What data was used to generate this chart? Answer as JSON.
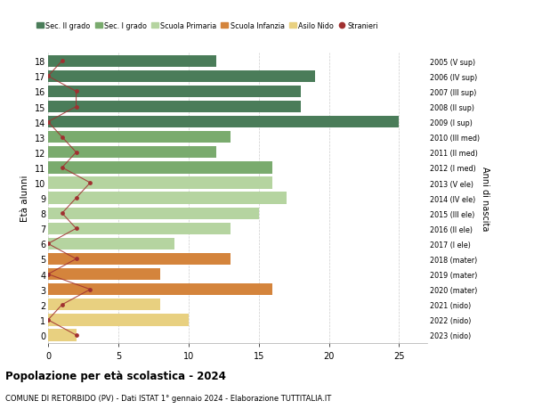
{
  "ages": [
    18,
    17,
    16,
    15,
    14,
    13,
    12,
    11,
    10,
    9,
    8,
    7,
    6,
    5,
    4,
    3,
    2,
    1,
    0
  ],
  "years": [
    "2005 (V sup)",
    "2006 (IV sup)",
    "2007 (III sup)",
    "2008 (II sup)",
    "2009 (I sup)",
    "2010 (III med)",
    "2011 (II med)",
    "2012 (I med)",
    "2013 (V ele)",
    "2014 (IV ele)",
    "2015 (III ele)",
    "2016 (II ele)",
    "2017 (I ele)",
    "2018 (mater)",
    "2019 (mater)",
    "2020 (mater)",
    "2021 (nido)",
    "2022 (nido)",
    "2023 (nido)"
  ],
  "bar_values": [
    12,
    19,
    18,
    18,
    25,
    13,
    12,
    16,
    16,
    17,
    15,
    13,
    9,
    13,
    8,
    16,
    8,
    10,
    2
  ],
  "bar_colors": [
    "#4a7c59",
    "#4a7c59",
    "#4a7c59",
    "#4a7c59",
    "#4a7c59",
    "#7aab6e",
    "#7aab6e",
    "#7aab6e",
    "#b5d4a0",
    "#b5d4a0",
    "#b5d4a0",
    "#b5d4a0",
    "#b5d4a0",
    "#d4843c",
    "#d4843c",
    "#d4843c",
    "#e8d080",
    "#e8d080",
    "#e8d080"
  ],
  "stranieri_values": [
    1,
    0,
    2,
    2,
    0,
    1,
    2,
    1,
    3,
    2,
    1,
    2,
    0,
    2,
    0,
    3,
    1,
    0,
    2
  ],
  "stranieri_color": "#a03030",
  "title_bold": "Popolazione per età scolastica - 2024",
  "subtitle": "COMUNE DI RETORBIDO (PV) - Dati ISTAT 1° gennaio 2024 - Elaborazione TUTTITALIA.IT",
  "ylabel": "Età alunni",
  "right_label": "Anni di nascita",
  "xlim": [
    0,
    27
  ],
  "xticks": [
    0,
    5,
    10,
    15,
    20,
    25
  ],
  "legend_labels": [
    "Sec. II grado",
    "Sec. I grado",
    "Scuola Primaria",
    "Scuola Infanzia",
    "Asilo Nido",
    "Stranieri"
  ],
  "legend_colors": [
    "#4a7c59",
    "#7aab6e",
    "#b5d4a0",
    "#d4843c",
    "#e8d080",
    "#a03030"
  ],
  "bg_color": "#ffffff",
  "grid_color": "#cccccc"
}
